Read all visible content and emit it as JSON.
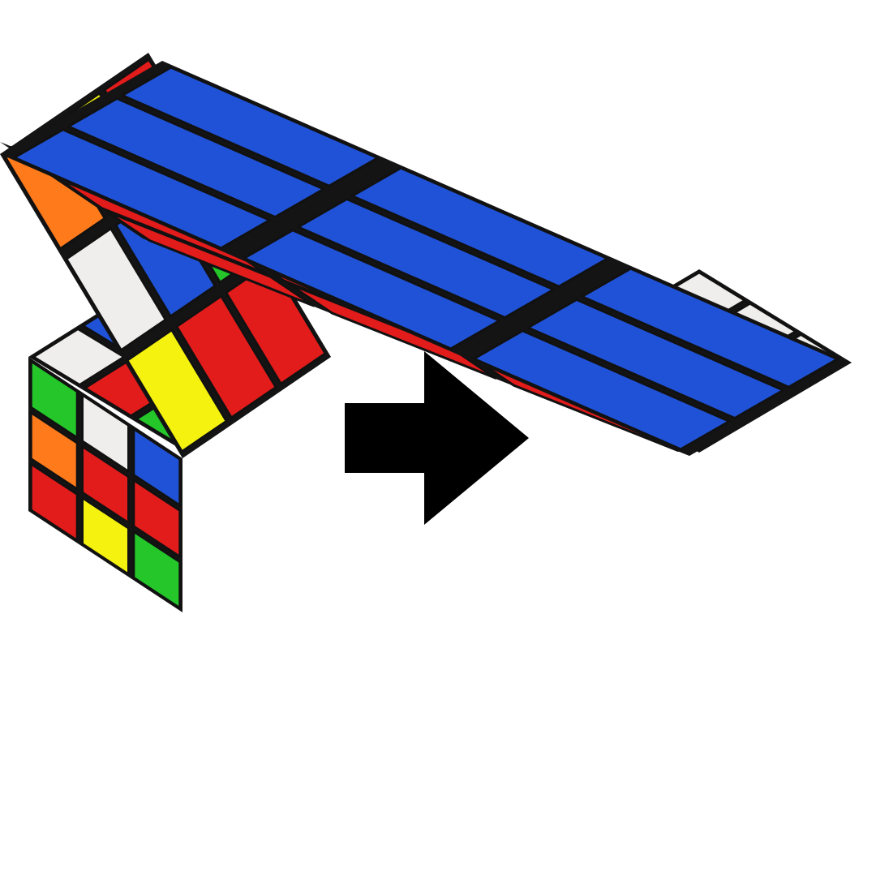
{
  "colors": {
    "background": "#ffffff",
    "cube_body": "#141414",
    "arrow": "#000000",
    "white": "#efeeec",
    "blue": "#1f52d6",
    "red": "#e21b1b",
    "orange": "#ff7a1a",
    "green": "#24c62a",
    "yellow": "#f4f20e"
  },
  "scrambled_cube": {
    "top": [
      [
        "orange",
        "blue",
        "orange"
      ],
      [
        "blue",
        "white",
        "green"
      ],
      [
        "white",
        "red",
        "green"
      ]
    ],
    "left": [
      [
        "green",
        "white",
        "blue"
      ],
      [
        "orange",
        "red",
        "red"
      ],
      [
        "red",
        "yellow",
        "green"
      ]
    ],
    "right": [
      [
        "yellow",
        "red",
        "red"
      ],
      [
        "white",
        "blue",
        "green"
      ],
      [
        "orange",
        "yellow",
        "red"
      ]
    ]
  },
  "solved_cube": {
    "top": [
      [
        "white",
        "white",
        "white"
      ],
      [
        "white",
        "white",
        "white"
      ],
      [
        "white",
        "white",
        "white"
      ]
    ],
    "left": [
      [
        "red",
        "red",
        "red"
      ],
      [
        "red",
        "red",
        "red"
      ],
      [
        "red",
        "red",
        "red"
      ]
    ],
    "right": [
      [
        "blue",
        "blue",
        "blue"
      ],
      [
        "blue",
        "blue",
        "blue"
      ],
      [
        "blue",
        "blue",
        "blue"
      ]
    ]
  }
}
